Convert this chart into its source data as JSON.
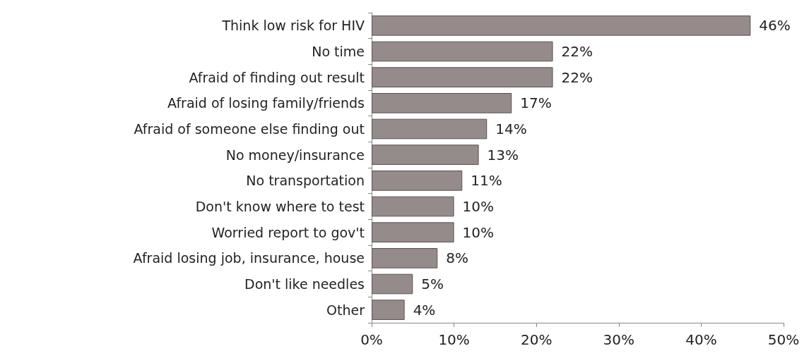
{
  "chart_data": {
    "type": "bar",
    "orientation": "horizontal",
    "categories": [
      "Think low risk for HIV",
      "No time",
      "Afraid of finding out result",
      "Afraid of losing family/friends",
      "Afraid of someone else finding out",
      "No money/insurance",
      "No transportation",
      "Don't know where to test",
      "Worried report to gov't",
      "Afraid losing job, insurance, house",
      "Don't like needles",
      "Other"
    ],
    "values": [
      46,
      22,
      22,
      17,
      14,
      13,
      11,
      10,
      10,
      8,
      5,
      4
    ],
    "value_labels": [
      "46%",
      "22%",
      "22%",
      "17%",
      "14%",
      "13%",
      "11%",
      "10%",
      "10%",
      "8%",
      "5%",
      "4%"
    ],
    "color": "#968b8b",
    "xlim": [
      0,
      50
    ],
    "xticks": [
      {
        "value": 0,
        "label": "0%"
      },
      {
        "value": 10,
        "label": "10%"
      },
      {
        "value": 20,
        "label": "20%"
      },
      {
        "value": 30,
        "label": "30%"
      },
      {
        "value": 40,
        "label": "40%"
      },
      {
        "value": 50,
        "label": "50%"
      }
    ],
    "grid": false
  }
}
